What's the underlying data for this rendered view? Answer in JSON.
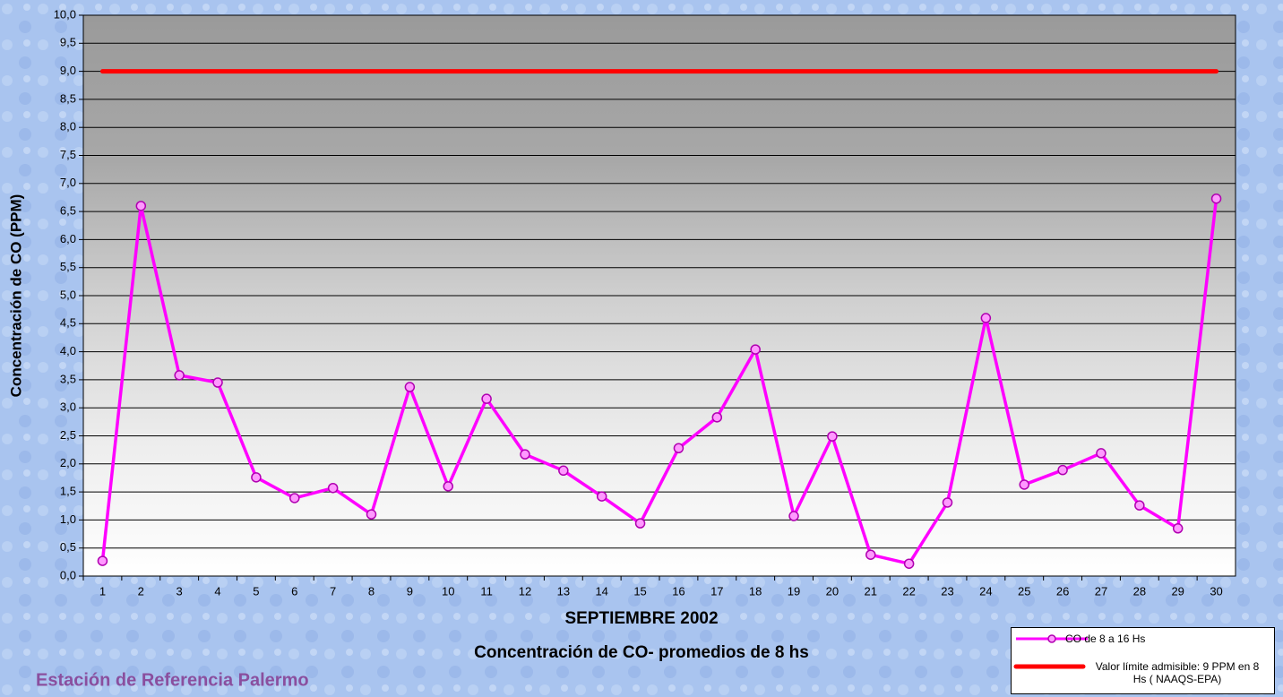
{
  "chart_data": {
    "type": "line",
    "y_label": "Concentración de CO (PPM)",
    "x_label": "SEPTIEMBRE 2002",
    "subtitle": "Concentración de CO- promedios de 8 hs",
    "footer": "Estación de Referencia Palermo",
    "categories": [
      "1",
      "2",
      "3",
      "4",
      "5",
      "6",
      "7",
      "8",
      "9",
      "10",
      "11",
      "12",
      "13",
      "14",
      "15",
      "16",
      "17",
      "18",
      "19",
      "20",
      "21",
      "22",
      "23",
      "24",
      "25",
      "26",
      "27",
      "28",
      "29",
      "30"
    ],
    "series": [
      {
        "name": "CO de 8 a 16 Hs",
        "color": "#ff00ff",
        "marker_fill": "#ff99ff",
        "values": [
          0.27,
          6.6,
          3.58,
          3.45,
          1.76,
          1.39,
          1.57,
          1.1,
          3.37,
          1.6,
          3.16,
          2.17,
          1.88,
          1.42,
          0.94,
          2.28,
          2.83,
          4.04,
          1.07,
          2.49,
          0.38,
          0.22,
          1.31,
          4.6,
          1.63,
          1.89,
          2.19,
          1.26,
          0.85,
          6.73
        ]
      }
    ],
    "reference_line": {
      "name": "Valor límite admisible: 9 PPM en 8 Hs ( NAAQS-EPA)",
      "value": 9,
      "color": "#ff0000"
    },
    "ylim": [
      0,
      10
    ],
    "yticks": [
      {
        "value": 0,
        "label": "0,0"
      },
      {
        "value": 0.5,
        "label": "0,5"
      },
      {
        "value": 1,
        "label": "1,0"
      },
      {
        "value": 1.5,
        "label": "1,5"
      },
      {
        "value": 2,
        "label": "2,0"
      },
      {
        "value": 2.5,
        "label": "2,5"
      },
      {
        "value": 3,
        "label": "3,0"
      },
      {
        "value": 3.5,
        "label": "3,5"
      },
      {
        "value": 4,
        "label": "4,0"
      },
      {
        "value": 4.5,
        "label": "4,5"
      },
      {
        "value": 5,
        "label": "5,0"
      },
      {
        "value": 5.5,
        "label": "5,5"
      },
      {
        "value": 6,
        "label": "6,0"
      },
      {
        "value": 6.5,
        "label": "6,5"
      },
      {
        "value": 7,
        "label": "7,0"
      },
      {
        "value": 7.5,
        "label": "7,5"
      },
      {
        "value": 8,
        "label": "8,0"
      },
      {
        "value": 8.5,
        "label": "8,5"
      },
      {
        "value": 9,
        "label": "9,0"
      },
      {
        "value": 9.5,
        "label": "9,5"
      },
      {
        "value": 10,
        "label": "10,0"
      }
    ],
    "grid": true
  }
}
